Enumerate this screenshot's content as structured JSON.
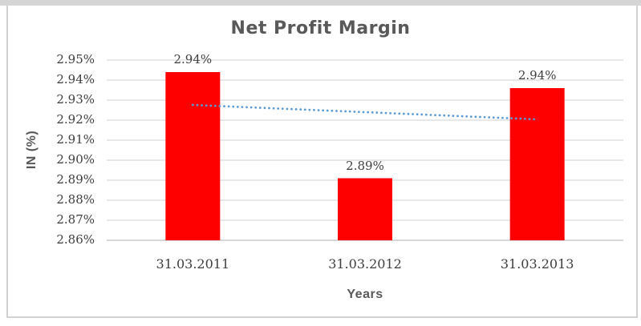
{
  "chart_data": {
    "type": "bar",
    "title": "Net Profit Margin",
    "xlabel": "Years",
    "ylabel": "IN (%)",
    "categories": [
      "31.03.2011",
      "31.03.2012",
      "31.03.2013"
    ],
    "values": [
      2.944,
      2.891,
      2.936
    ],
    "data_labels": [
      "2.94%",
      "2.89%",
      "2.94%"
    ],
    "ylim": [
      2.86,
      2.95
    ],
    "ytick_step": 0.01,
    "yticks": [
      "2.95%",
      "2.94%",
      "2.93%",
      "2.92%",
      "2.91%",
      "2.90%",
      "2.89%",
      "2.88%",
      "2.87%",
      "2.86%"
    ],
    "grid": true,
    "legend_position": "none",
    "trendline": {
      "type": "linear",
      "style": "dotted",
      "start_value": 2.9276,
      "end_value": 2.9204
    },
    "colors": {
      "bar": "#ff0000",
      "trendline": "#5b9bd5",
      "gridline": "#d9d9d9",
      "axis_line": "#bfbfbf",
      "tick_text": "#3e3e3e",
      "title_text": "#595959"
    }
  }
}
